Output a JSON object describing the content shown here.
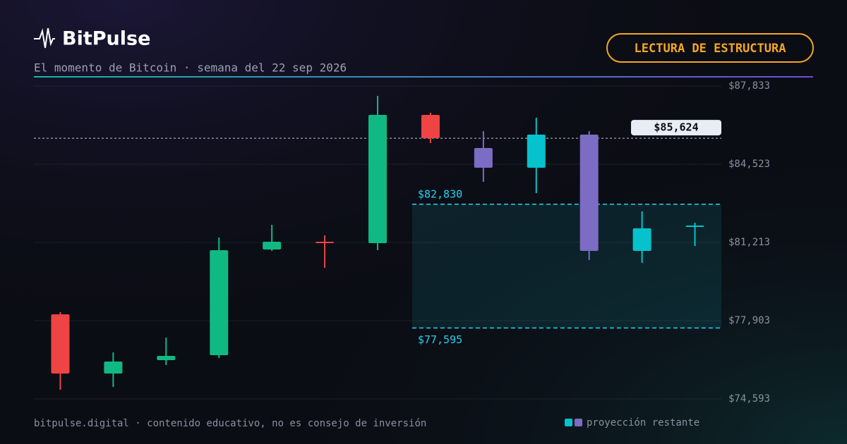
{
  "chart_data": {
    "type": "candlestick",
    "brand": "BitPulse",
    "subtitle": "El momento de Bitcoin · semana del 22 sep 2026",
    "badge": "LECTURA DE ESTRUCTURA",
    "footer": "bitpulse.digital · contenido educativo, no es consejo de inversión",
    "categories": [
      null,
      null,
      null,
      null,
      null,
      null,
      null,
      null,
      null,
      null,
      null,
      null,
      null
    ],
    "open": [
      78171,
      75666,
      76233,
      76442,
      80915,
      81243,
      81183,
      86610,
      85209,
      84374,
      85775,
      80855,
      81899
    ],
    "high": [
      78260,
      76561,
      77187,
      81422,
      81958,
      81511,
      87416,
      86700,
      85925,
      86491,
      85925,
      82525,
      82048
    ],
    "low": [
      74981,
      75100,
      76024,
      76322,
      80855,
      80139,
      80885,
      85418,
      83777,
      83300,
      80467,
      80348,
      81064
    ],
    "close": [
      75666,
      76173,
      76412,
      80885,
      81243,
      81213,
      86610,
      85624,
      84374,
      85775,
      80855,
      81809,
      81929
    ],
    "colors": [
      "#ef4444",
      "#10b981",
      "#10b981",
      "#10b981",
      "#10b981",
      "#ef4444",
      "#10b981",
      "#ef4444",
      "#7c6cc4",
      "#06c2cc",
      "#7c6cc4",
      "#06c2cc",
      "#06c2cc"
    ],
    "ylim": [
      74593,
      87833
    ],
    "yticks": [
      {
        "value": 74593,
        "label": "$74,593"
      },
      {
        "value": 77903,
        "label": "$77,903"
      },
      {
        "value": 81213,
        "label": "$81,213"
      },
      {
        "value": 84523,
        "label": "$84,523"
      },
      {
        "value": 87833,
        "label": "$87,833"
      }
    ],
    "grid": true,
    "current_price": {
      "value": 85624,
      "value_label": "$85,624"
    },
    "zone": {
      "values": [
        82830,
        77595
      ],
      "value_labels": [
        "$82,830",
        "$77,595"
      ],
      "color": "#22d3ee"
    },
    "legend": {
      "label": "proyección restante",
      "colors": [
        "#06c2cc",
        "#7c6cc4"
      ]
    }
  }
}
